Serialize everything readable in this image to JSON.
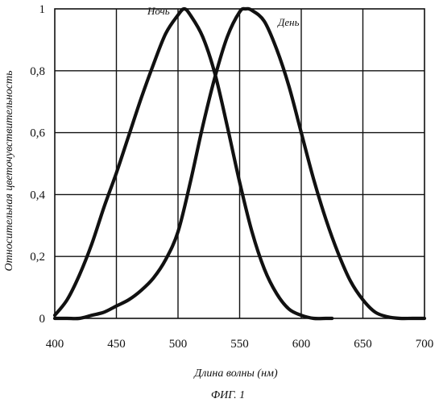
{
  "caption": "ФИГ. 1",
  "chart_data": {
    "type": "line",
    "xlabel": "Длина волны (нм)",
    "ylabel": "Относительная цветочувствительность",
    "xlim": [
      400,
      700
    ],
    "ylim": [
      0,
      1
    ],
    "x_ticks": [
      "400",
      "450",
      "500",
      "550",
      "600",
      "650",
      "700"
    ],
    "y_ticks": [
      "0",
      "0,2",
      "0,4",
      "0,6",
      "0,8",
      "1"
    ],
    "grid": true,
    "series": [
      {
        "name": "Ночь",
        "x": [
          400,
          410,
          420,
          430,
          440,
          450,
          460,
          470,
          480,
          490,
          500,
          505,
          510,
          520,
          530,
          540,
          550,
          560,
          570,
          580,
          590,
          600,
          610,
          620,
          625
        ],
        "values": [
          0.01,
          0.06,
          0.14,
          0.24,
          0.36,
          0.47,
          0.59,
          0.71,
          0.82,
          0.92,
          0.98,
          1.0,
          0.98,
          0.91,
          0.79,
          0.62,
          0.44,
          0.28,
          0.16,
          0.08,
          0.03,
          0.01,
          0.0,
          0.0,
          0.0
        ]
      },
      {
        "name": "День",
        "x": [
          400,
          410,
          420,
          430,
          440,
          450,
          460,
          470,
          480,
          490,
          500,
          510,
          520,
          530,
          540,
          550,
          555,
          560,
          570,
          580,
          590,
          600,
          610,
          620,
          630,
          640,
          650,
          660,
          670,
          680,
          690,
          700
        ],
        "values": [
          0.0,
          0.0,
          0.0,
          0.01,
          0.02,
          0.04,
          0.06,
          0.09,
          0.13,
          0.19,
          0.28,
          0.44,
          0.62,
          0.78,
          0.91,
          0.99,
          1.0,
          0.995,
          0.96,
          0.87,
          0.75,
          0.6,
          0.45,
          0.32,
          0.21,
          0.12,
          0.06,
          0.02,
          0.005,
          0.0,
          0.0,
          0.0
        ]
      }
    ]
  }
}
